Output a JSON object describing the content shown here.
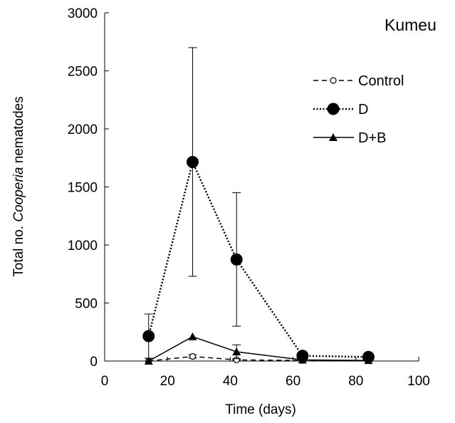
{
  "chart_data": {
    "type": "line",
    "site_label": "Kumeu",
    "xlabel": "Time (days)",
    "ylabel_prefix": "Total  no. ",
    "ylabel_italic": "Cooperia",
    "ylabel_suffix": " nematodes",
    "xlim": [
      0,
      100
    ],
    "ylim": [
      0,
      3000
    ],
    "xticks": [
      0,
      20,
      40,
      60,
      80,
      100
    ],
    "yticks": [
      0,
      500,
      1000,
      1500,
      2000,
      2500,
      3000
    ],
    "legend_position": "top-right",
    "grid": false,
    "series": [
      {
        "name": "Control",
        "line_style": "dashed",
        "marker": "open-circle",
        "x": [
          14,
          28,
          42,
          63,
          84
        ],
        "y": [
          0,
          40,
          10,
          5,
          5
        ],
        "err": [
          0,
          15,
          5,
          0,
          0
        ]
      },
      {
        "name": "D",
        "line_style": "dotted",
        "marker": "filled-circle",
        "x": [
          14,
          28,
          42,
          63,
          84
        ],
        "y": [
          215,
          1715,
          875,
          45,
          35
        ],
        "err": [
          190,
          985,
          575,
          0,
          0
        ]
      },
      {
        "name": "D+B",
        "line_style": "solid",
        "marker": "filled-triangle",
        "x": [
          14,
          28,
          42,
          63,
          84
        ],
        "y": [
          0,
          210,
          80,
          10,
          5
        ],
        "err": [
          0,
          0,
          60,
          0,
          0
        ]
      }
    ]
  }
}
